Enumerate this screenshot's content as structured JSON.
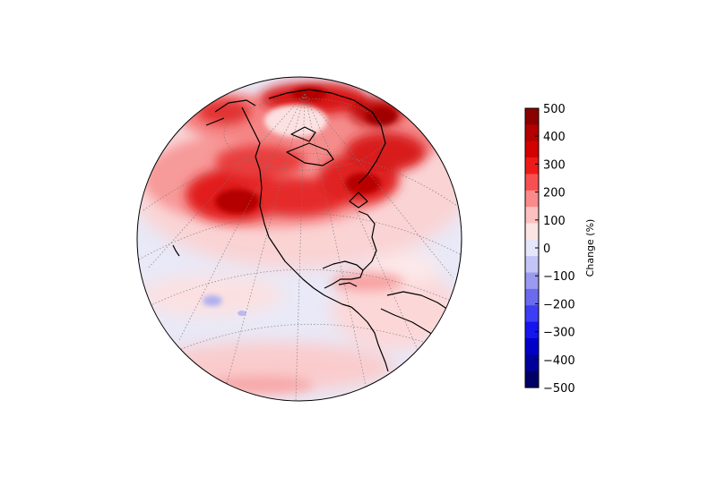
{
  "colorbar": {
    "label": "Change (%)",
    "ticks": [
      "500",
      "400",
      "300",
      "200",
      "100",
      "0",
      "−100",
      "−200",
      "−300",
      "−400",
      "−500"
    ],
    "colors_top_to_bottom": [
      "#8b0000",
      "#b30000",
      "#d40000",
      "#ee1a1a",
      "#f85050",
      "#fb8a8a",
      "#fdc0c0",
      "#fde4e4",
      "#e6e6fb",
      "#c4c4f6",
      "#9a9af0",
      "#6b6bf0",
      "#3d3df5",
      "#1515ee",
      "#0000c8",
      "#00009a",
      "#000066"
    ]
  },
  "map": {
    "projection": "orthographic",
    "region": "North America centered globe",
    "ocean_color": "#e9e9f7",
    "coastline_color": "#000000",
    "gridline_style": "dotted"
  }
}
